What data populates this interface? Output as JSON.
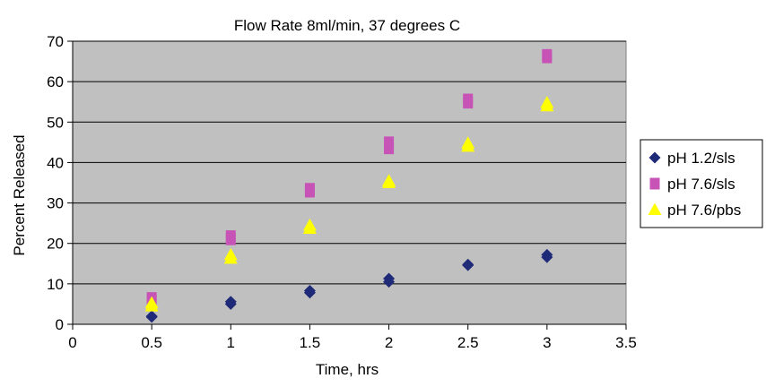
{
  "chart_data": {
    "type": "scatter",
    "title": "Flow Rate 8ml/min, 37 degrees C",
    "xlabel": "Time, hrs",
    "ylabel": "Percent Released",
    "xlim": [
      0,
      3.5
    ],
    "ylim": [
      0,
      70
    ],
    "xticks": [
      "0",
      "0.5",
      "1",
      "1.5",
      "2",
      "2.5",
      "3",
      "3.5"
    ],
    "yticks": [
      "0",
      "10",
      "20",
      "30",
      "40",
      "50",
      "60",
      "70"
    ],
    "grid": true,
    "plot_background": "#c0c0c0",
    "legend_position": "right",
    "series": [
      {
        "name": "pH 1.2/sls",
        "marker": "diamond",
        "color": "#1f2a78",
        "points": [
          [
            0.5,
            1.8
          ],
          [
            0.5,
            2.0
          ],
          [
            1.0,
            5.0
          ],
          [
            1.0,
            5.6
          ],
          [
            1.5,
            7.8
          ],
          [
            1.5,
            8.3
          ],
          [
            2.0,
            10.5
          ],
          [
            2.0,
            11.3
          ],
          [
            2.5,
            14.6
          ],
          [
            2.5,
            14.8
          ],
          [
            3.0,
            16.6
          ],
          [
            3.0,
            17.2
          ]
        ]
      },
      {
        "name": "pH 7.6/sls",
        "marker": "square",
        "color": "#c653b5",
        "points": [
          [
            0.5,
            6.0
          ],
          [
            0.5,
            6.5
          ],
          [
            1.0,
            21.0
          ],
          [
            1.0,
            21.8
          ],
          [
            1.5,
            32.8
          ],
          [
            1.5,
            33.5
          ],
          [
            2.0,
            43.5
          ],
          [
            2.0,
            45.0
          ],
          [
            2.5,
            54.8
          ],
          [
            2.5,
            55.6
          ],
          [
            3.0,
            66.0
          ],
          [
            3.0,
            66.6
          ]
        ]
      },
      {
        "name": "pH 7.6/pbs",
        "marker": "triangle",
        "color": "#ffff00",
        "points": [
          [
            0.5,
            4.5
          ],
          [
            0.5,
            5.3
          ],
          [
            1.0,
            16.3
          ],
          [
            1.0,
            17.2
          ],
          [
            1.5,
            23.7
          ],
          [
            1.5,
            24.5
          ],
          [
            2.0,
            35.0
          ],
          [
            2.0,
            35.5
          ],
          [
            2.5,
            44.0
          ],
          [
            2.5,
            44.8
          ],
          [
            3.0,
            54.0
          ],
          [
            3.0,
            54.8
          ]
        ]
      }
    ]
  }
}
